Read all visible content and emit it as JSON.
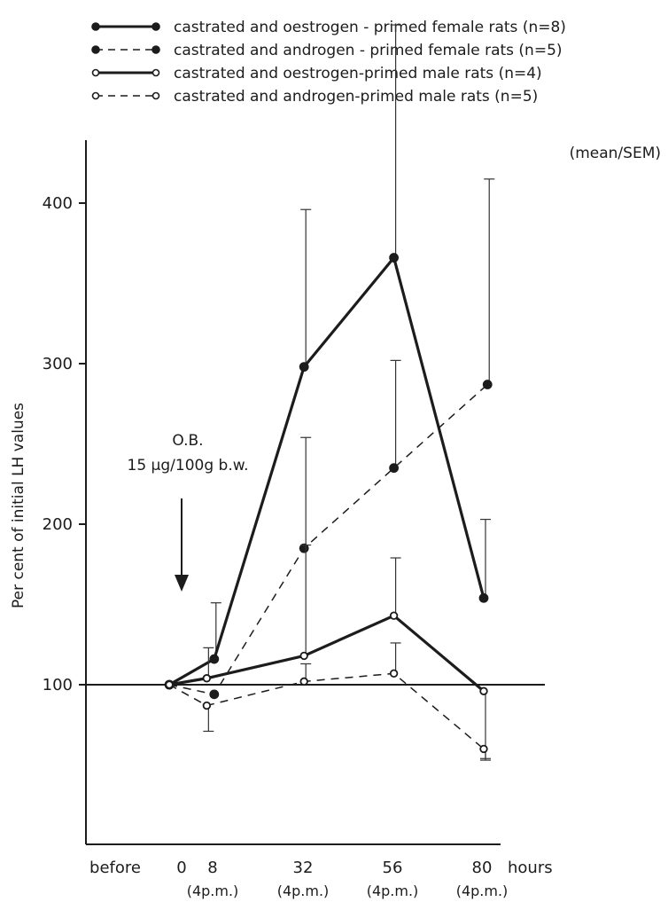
{
  "chart_data": {
    "type": "line",
    "ylabel": "Per cent of initial LH values",
    "xlabel": "hours",
    "statistic_note": "(mean/SEM)",
    "categories": [
      {
        "label": "before",
        "sub": ""
      },
      {
        "label": "0",
        "sub": ""
      },
      {
        "label": "8",
        "sub": "(4p.m.)"
      },
      {
        "label": "32",
        "sub": "(4p.m.)"
      },
      {
        "label": "56",
        "sub": "(4p.m.)"
      },
      {
        "label": "80",
        "sub": "(4p.m.)"
      }
    ],
    "x_axis": {
      "ticks": [
        0,
        8,
        32,
        56,
        80
      ],
      "unit": "hours"
    },
    "y_axis": {
      "ticks": [
        100,
        200,
        300,
        400
      ],
      "baseline": 100,
      "range": [
        0,
        460
      ]
    },
    "annotation": {
      "line1": "O.B.",
      "line2": "15 µg/100g b.w.",
      "at_hours": 0
    },
    "series": [
      {
        "name": "castrated and oestrogen - primed female rats (n=8)",
        "color": "#1c1c1c",
        "dashed": false,
        "marker": "filled",
        "thick": true,
        "x": [
          -4,
          8,
          32,
          56,
          80
        ],
        "y": [
          100,
          116,
          298,
          366,
          154
        ],
        "err": [
          0,
          35,
          98,
          145,
          49
        ]
      },
      {
        "name": "castrated and androgen - primed female rats (n=5)",
        "color": "#1c1c1c",
        "dashed": true,
        "marker": "filled",
        "thick": false,
        "x": [
          -4,
          8,
          32,
          56,
          81
        ],
        "y": [
          100,
          94,
          185,
          235,
          287
        ],
        "err": [
          0,
          0,
          69,
          67,
          128
        ]
      },
      {
        "name": "castrated and oestrogen-primed male rats (n=4)",
        "color": "#1c1c1c",
        "dashed": false,
        "marker": "open",
        "thick": true,
        "x": [
          -4,
          6,
          32,
          56,
          80
        ],
        "y": [
          100,
          104,
          118,
          143,
          96
        ],
        "err": [
          0,
          19,
          69,
          36,
          43
        ]
      },
      {
        "name": "castrated and androgen-primed male rats (n=5)",
        "color": "#1c1c1c",
        "dashed": true,
        "marker": "open",
        "thick": false,
        "x": [
          -4,
          6,
          32,
          56,
          80
        ],
        "y": [
          100,
          87,
          102,
          107,
          60
        ],
        "err": [
          0,
          16,
          11,
          19,
          6
        ]
      }
    ]
  }
}
